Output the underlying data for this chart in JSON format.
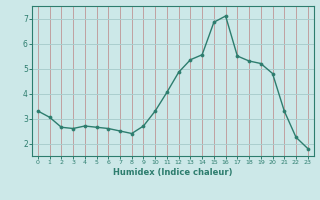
{
  "x": [
    0,
    1,
    2,
    3,
    4,
    5,
    6,
    7,
    8,
    9,
    10,
    11,
    12,
    13,
    14,
    15,
    16,
    17,
    18,
    19,
    20,
    21,
    22,
    23
  ],
  "y": [
    3.3,
    3.05,
    2.65,
    2.6,
    2.7,
    2.65,
    2.6,
    2.5,
    2.4,
    2.7,
    3.3,
    4.05,
    4.85,
    5.35,
    5.55,
    6.85,
    7.1,
    5.5,
    5.3,
    5.2,
    4.8,
    3.3,
    2.25,
    1.8
  ],
  "bg_color": "#cce8e8",
  "line_color": "#2d7d6e",
  "marker_color": "#2d7d6e",
  "hgrid_color": "#aacece",
  "vgrid_color": "#c0a0a0",
  "xlabel": "Humidex (Indice chaleur)",
  "xlim": [
    -0.5,
    23.5
  ],
  "ylim": [
    1.5,
    7.5
  ],
  "yticks": [
    2,
    3,
    4,
    5,
    6,
    7
  ],
  "xticks": [
    0,
    1,
    2,
    3,
    4,
    5,
    6,
    7,
    8,
    9,
    10,
    11,
    12,
    13,
    14,
    15,
    16,
    17,
    18,
    19,
    20,
    21,
    22,
    23
  ],
  "axis_color": "#2d7d6e",
  "tick_color": "#2d7d6e",
  "label_color": "#2d7d6e"
}
